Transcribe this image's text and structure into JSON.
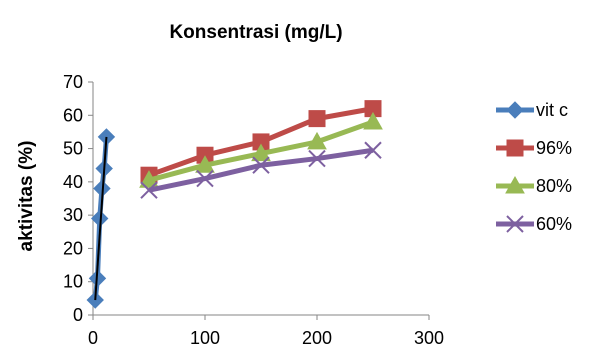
{
  "chart_data": {
    "type": "line",
    "title": "Konsentrasi (mg/L)",
    "ylabel": "aktivitas (%)",
    "xlabel": "",
    "xlim": [
      0,
      300
    ],
    "ylim": [
      0,
      70
    ],
    "x_ticks": [
      0,
      100,
      200,
      300
    ],
    "y_ticks": [
      0,
      10,
      20,
      30,
      40,
      50,
      60,
      70
    ],
    "grid": false,
    "legend_position": "right",
    "series": [
      {
        "name": "vit c",
        "color": "#4a7ebb",
        "marker": "diamond",
        "x": [
          2,
          4,
          6,
          8,
          10,
          12
        ],
        "y": [
          4.5,
          11,
          29,
          38,
          44,
          53.5
        ],
        "trendline": {
          "color": "#000000",
          "x": [
            2,
            12
          ],
          "y": [
            4.5,
            53.5
          ]
        }
      },
      {
        "name": "96%",
        "color": "#be4b48",
        "marker": "square",
        "x": [
          50,
          100,
          150,
          200,
          250
        ],
        "y": [
          42,
          48,
          52,
          59,
          62
        ]
      },
      {
        "name": "80%",
        "color": "#98b954",
        "marker": "triangle",
        "x": [
          50,
          100,
          150,
          200,
          250
        ],
        "y": [
          40.5,
          45,
          48.5,
          52,
          58
        ]
      },
      {
        "name": "60%",
        "color": "#7d60a0",
        "marker": "x",
        "x": [
          50,
          100,
          150,
          200,
          250
        ],
        "y": [
          37.5,
          41,
          45,
          47,
          49.5
        ]
      }
    ]
  }
}
